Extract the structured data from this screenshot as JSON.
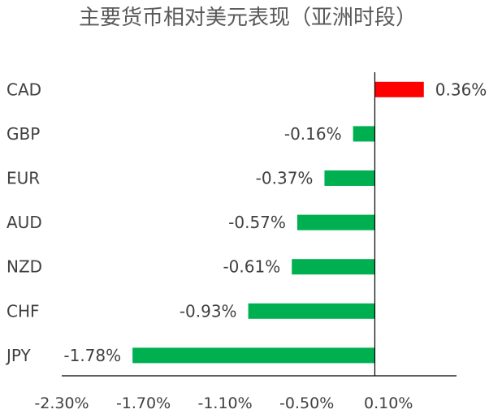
{
  "chart_data": {
    "type": "bar",
    "orientation": "horizontal",
    "title": "主要货币相对美元表现（亚洲时段）",
    "categories": [
      "CAD",
      "GBP",
      "EUR",
      "AUD",
      "NZD",
      "CHF",
      "JPY"
    ],
    "values": [
      0.36,
      -0.16,
      -0.37,
      -0.57,
      -0.61,
      -0.93,
      -1.78
    ],
    "value_labels": [
      "0.36%",
      "-0.16%",
      "-0.37%",
      "-0.57%",
      "-0.61%",
      "-0.93%",
      "-1.78%"
    ],
    "unit": "%",
    "xlim": [
      -2.3,
      0.6
    ],
    "x_ticks": [
      -2.3,
      -1.7,
      -1.1,
      -0.5,
      0.1
    ],
    "x_tick_labels": [
      "-2.30%",
      "-1.70%",
      "-1.10%",
      "-0.50%",
      "0.10%"
    ],
    "colors": {
      "positive": "#ff0000",
      "negative": "#00b050"
    },
    "grid": false,
    "legend": "none"
  }
}
